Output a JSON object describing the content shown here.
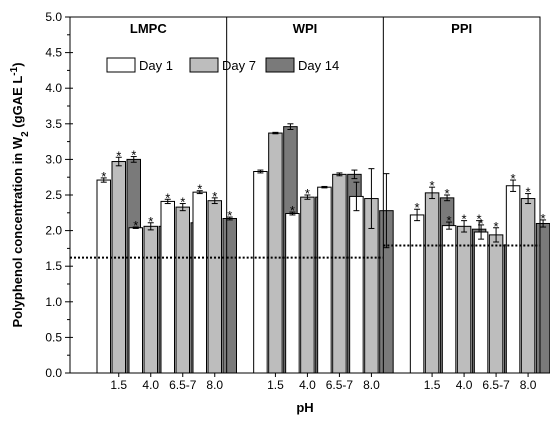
{
  "chart_data": {
    "type": "bar",
    "xlabel": "pH",
    "ylabel": {
      "main": "Polyphenol concentration in W",
      "sub": "2",
      "unit": " (gGAE L",
      "sup": "-1",
      "close": ")"
    },
    "ylim": [
      0,
      5.0
    ],
    "yticks": [
      "0.0",
      "0.5",
      "1.0",
      "1.5",
      "2.0",
      "2.5",
      "3.0",
      "3.5",
      "4.0",
      "4.5",
      "5.0"
    ],
    "legend": {
      "position": "top-center",
      "entries": [
        "Day 1",
        "Day 7",
        "Day 14"
      ]
    },
    "series_colors": [
      "#ffffff",
      "#bdbdbd",
      "#7a7a7a"
    ],
    "significance_marker": "*",
    "panels": [
      {
        "title": "LMPC",
        "baseline": 1.62,
        "categories": [
          "1.5",
          "4.0",
          "6.5-7",
          "8.0"
        ],
        "series": [
          {
            "name": "Day 1",
            "values": [
              2.71,
              2.04,
              2.41,
              2.54
            ],
            "errors": [
              0.03,
              0.01,
              0.03,
              0.02
            ],
            "stars": [
              true,
              true,
              true,
              true
            ]
          },
          {
            "name": "Day 7",
            "values": [
              2.97,
              2.06,
              2.33,
              2.42
            ],
            "errors": [
              0.06,
              0.05,
              0.05,
              0.04
            ],
            "stars": [
              true,
              true,
              true,
              true
            ]
          },
          {
            "name": "Day 14",
            "values": [
              3.0,
              2.06,
              2.11,
              2.17
            ],
            "errors": [
              0.04,
              0.01,
              0.1,
              0.02
            ],
            "stars": [
              true,
              true,
              true,
              true
            ]
          }
        ]
      },
      {
        "title": "WPI",
        "baseline": 1.62,
        "categories": [
          "1.5",
          "4.0",
          "6.5-7",
          "8.0"
        ],
        "series": [
          {
            "name": "Day 1",
            "values": [
              2.83,
              2.24,
              2.61,
              2.48
            ],
            "errors": [
              0.02,
              0.02,
              0.01,
              0.2
            ],
            "stars": [
              false,
              true,
              false,
              false
            ]
          },
          {
            "name": "Day 7",
            "values": [
              3.37,
              2.47,
              2.79,
              2.45
            ],
            "errors": [
              0.01,
              0.03,
              0.02,
              0.42
            ],
            "stars": [
              false,
              true,
              false,
              false
            ]
          },
          {
            "name": "Day 14",
            "values": [
              3.46,
              2.47,
              2.79,
              2.28
            ],
            "errors": [
              0.04,
              0.02,
              0.06,
              0.52
            ],
            "stars": [
              false,
              true,
              false,
              false
            ]
          }
        ]
      },
      {
        "title": "PPI",
        "baseline": 1.79,
        "categories": [
          "1.5",
          "4.0",
          "6.5-7",
          "8.0"
        ],
        "series": [
          {
            "name": "Day 1",
            "values": [
              2.22,
              2.07,
              1.98,
              2.63
            ],
            "errors": [
              0.08,
              0.05,
              0.1,
              0.08
            ],
            "stars": [
              true,
              true,
              true,
              true
            ]
          },
          {
            "name": "Day 7",
            "values": [
              2.53,
              2.06,
              1.94,
              2.45
            ],
            "errors": [
              0.08,
              0.08,
              0.1,
              0.07
            ],
            "stars": [
              true,
              true,
              true,
              true
            ]
          },
          {
            "name": "Day 14",
            "values": [
              2.46,
              2.02,
              1.8,
              2.1
            ],
            "errors": [
              0.04,
              0.12,
              0.15,
              0.05
            ],
            "stars": [
              true,
              true,
              true,
              true
            ]
          }
        ]
      }
    ]
  }
}
